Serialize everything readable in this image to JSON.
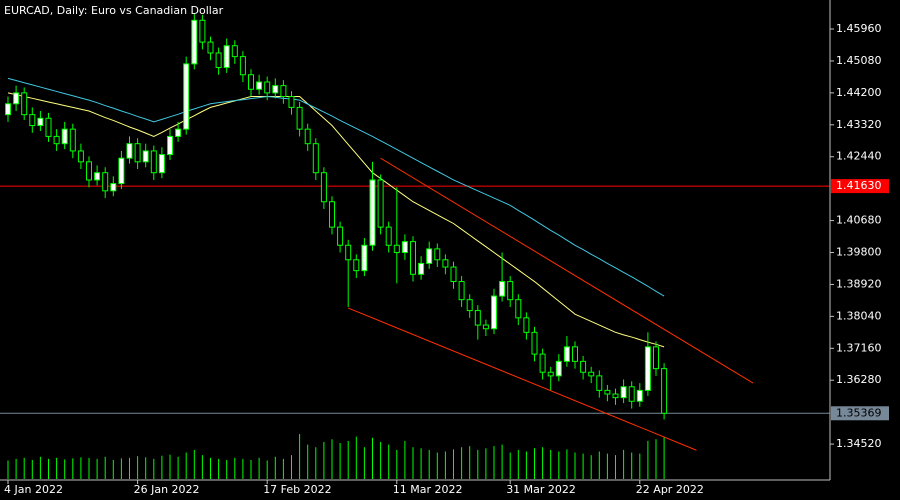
{
  "chart_data": {
    "type": "candlestick",
    "title": "EURCAD, Daily:  Euro vs Canadian Dollar",
    "background": "#000000",
    "axis_color": "#c0c0c0",
    "bull_color": "#ffffff",
    "bear_color": "#000000",
    "wick_color": "#00ff00",
    "volume_color": "#00ff00",
    "categories": [
      "4 Jan 2022",
      null,
      null,
      null,
      null,
      null,
      null,
      null,
      null,
      null,
      null,
      null,
      null,
      null,
      null,
      null,
      "26 Jan 2022",
      null,
      null,
      null,
      null,
      null,
      null,
      null,
      null,
      null,
      null,
      null,
      null,
      null,
      null,
      null,
      "17 Feb 2022",
      null,
      null,
      null,
      null,
      null,
      null,
      null,
      null,
      null,
      null,
      null,
      null,
      null,
      null,
      null,
      "11 Mar 2022",
      null,
      null,
      null,
      null,
      null,
      null,
      null,
      null,
      null,
      null,
      null,
      null,
      null,
      "31 Mar 2022",
      null,
      null,
      null,
      null,
      null,
      null,
      null,
      null,
      null,
      null,
      null,
      null,
      null,
      null,
      null,
      "22 Apr 2022",
      null,
      null,
      null
    ],
    "open": [
      1.436,
      1.439,
      1.442,
      1.436,
      1.433,
      1.435,
      1.43,
      1.428,
      1.432,
      1.426,
      1.423,
      1.418,
      1.42,
      1.415,
      1.417,
      1.424,
      1.428,
      1.423,
      1.426,
      1.42,
      1.425,
      1.43,
      1.432,
      1.45,
      1.462,
      1.456,
      1.453,
      1.449,
      1.455,
      1.452,
      1.447,
      1.443,
      1.445,
      1.442,
      1.444,
      1.441,
      1.438,
      1.432,
      1.428,
      1.42,
      1.412,
      1.405,
      1.4,
      1.396,
      1.393,
      1.4,
      1.418,
      1.405,
      1.4,
      1.398,
      1.401,
      1.392,
      1.395,
      1.399,
      1.396,
      1.394,
      1.39,
      1.385,
      1.382,
      1.378,
      1.377,
      1.386,
      1.39,
      1.385,
      1.38,
      1.376,
      1.37,
      1.365,
      1.364,
      1.368,
      1.372,
      1.368,
      1.365,
      1.364,
      1.36,
      1.359,
      1.358,
      1.361,
      1.357,
      1.36,
      1.372,
      1.366
    ],
    "high": [
      1.441,
      1.444,
      1.4435,
      1.438,
      1.437,
      1.4365,
      1.432,
      1.434,
      1.4335,
      1.428,
      1.4245,
      1.422,
      1.4215,
      1.419,
      1.426,
      1.43,
      1.4295,
      1.428,
      1.4275,
      1.427,
      1.432,
      1.434,
      1.452,
      1.464,
      1.4635,
      1.4575,
      1.4545,
      1.457,
      1.4565,
      1.4535,
      1.4485,
      1.447,
      1.4465,
      1.446,
      1.4455,
      1.4425,
      1.4395,
      1.4335,
      1.4295,
      1.4215,
      1.4135,
      1.4065,
      1.4015,
      1.3975,
      1.402,
      1.423,
      1.4195,
      1.4065,
      1.416,
      1.403,
      1.4025,
      1.397,
      1.401,
      1.4005,
      1.3975,
      1.3955,
      1.3915,
      1.3865,
      1.3835,
      1.3795,
      1.388,
      1.398,
      1.3915,
      1.3865,
      1.3815,
      1.3775,
      1.3715,
      1.3665,
      1.37,
      1.375,
      1.3735,
      1.3695,
      1.3665,
      1.3655,
      1.3615,
      1.3605,
      1.363,
      1.3625,
      1.362,
      1.376,
      1.3735,
      1.3675
    ],
    "low": [
      1.434,
      1.437,
      1.4345,
      1.431,
      1.4315,
      1.4285,
      1.426,
      1.4265,
      1.424,
      1.421,
      1.416,
      1.4165,
      1.413,
      1.4135,
      1.4155,
      1.4225,
      1.421,
      1.4215,
      1.418,
      1.4185,
      1.4235,
      1.4285,
      1.4305,
      1.4485,
      1.454,
      1.451,
      1.447,
      1.4475,
      1.45,
      1.445,
      1.441,
      1.4415,
      1.44,
      1.4405,
      1.439,
      1.436,
      1.43,
      1.426,
      1.418,
      1.41,
      1.403,
      1.398,
      1.383,
      1.391,
      1.3915,
      1.3985,
      1.403,
      1.398,
      1.3895,
      1.396,
      1.39,
      1.3905,
      1.3935,
      1.394,
      1.392,
      1.388,
      1.383,
      1.38,
      1.374,
      1.375,
      1.3755,
      1.3845,
      1.383,
      1.378,
      1.374,
      1.368,
      1.363,
      1.36,
      1.3625,
      1.3665,
      1.366,
      1.363,
      1.362,
      1.358,
      1.357,
      1.356,
      1.3565,
      1.355,
      1.3555,
      1.3585,
      1.364,
      1.352
    ],
    "close": [
      1.439,
      1.442,
      1.436,
      1.433,
      1.435,
      1.43,
      1.428,
      1.432,
      1.426,
      1.423,
      1.418,
      1.42,
      1.415,
      1.417,
      1.424,
      1.428,
      1.423,
      1.426,
      1.42,
      1.425,
      1.43,
      1.432,
      1.45,
      1.462,
      1.456,
      1.453,
      1.449,
      1.455,
      1.452,
      1.447,
      1.443,
      1.445,
      1.442,
      1.444,
      1.441,
      1.438,
      1.432,
      1.428,
      1.42,
      1.412,
      1.405,
      1.4,
      1.396,
      1.393,
      1.4,
      1.418,
      1.405,
      1.4,
      1.398,
      1.401,
      1.392,
      1.395,
      1.399,
      1.396,
      1.394,
      1.39,
      1.385,
      1.382,
      1.378,
      1.377,
      1.386,
      1.39,
      1.385,
      1.38,
      1.376,
      1.37,
      1.365,
      1.364,
      1.368,
      1.372,
      1.368,
      1.365,
      1.364,
      1.36,
      1.359,
      1.358,
      1.361,
      1.357,
      1.36,
      1.372,
      1.366,
      1.3537
    ],
    "volume": [
      35,
      38,
      40,
      36,
      42,
      38,
      40,
      37,
      39,
      41,
      40,
      38,
      42,
      36,
      39,
      40,
      43,
      41,
      38,
      44,
      46,
      42,
      50,
      55,
      45,
      40,
      38,
      36,
      40,
      38,
      36,
      40,
      35,
      42,
      38,
      45,
      85,
      65,
      60,
      70,
      75,
      68,
      72,
      80,
      60,
      78,
      70,
      65,
      55,
      72,
      60,
      58,
      55,
      50,
      52,
      56,
      60,
      62,
      55,
      58,
      62,
      65,
      50,
      55,
      52,
      58,
      60,
      55,
      52,
      56,
      50,
      48,
      45,
      52,
      48,
      45,
      55,
      50,
      48,
      72,
      75,
      80
    ],
    "ma": [
      {
        "color": "#ffff80",
        "values": [
          1.442,
          1.4415,
          1.441,
          1.4405,
          1.44,
          1.4395,
          1.439,
          1.4385,
          1.438,
          1.4375,
          1.437,
          1.4361,
          1.4352,
          1.4344,
          1.4335,
          1.4326,
          1.4318,
          1.4309,
          1.43,
          1.4311,
          1.4323,
          1.4334,
          1.4346,
          1.4357,
          1.4369,
          1.438,
          1.4386,
          1.4392,
          1.4398,
          1.4404,
          1.441,
          1.441,
          1.441,
          1.441,
          1.441,
          1.441,
          1.441,
          1.439,
          1.437,
          1.435,
          1.433,
          1.4304,
          1.4278,
          1.4252,
          1.4226,
          1.42,
          1.4184,
          1.4168,
          1.4152,
          1.4136,
          1.412,
          1.4108,
          1.4096,
          1.4084,
          1.4072,
          1.406,
          1.4044,
          1.4028,
          1.4012,
          1.3996,
          1.398,
          1.3964,
          1.3948,
          1.3932,
          1.3916,
          1.39,
          1.3882,
          1.3864,
          1.3846,
          1.3828,
          1.381,
          1.38,
          1.379,
          1.378,
          1.377,
          1.376,
          1.3753,
          1.3747,
          1.374,
          1.3733,
          1.3727,
          1.372
        ]
      },
      {
        "color": "#40c8e0",
        "values": [
          1.446,
          1.4454,
          1.4448,
          1.4442,
          1.4436,
          1.443,
          1.4424,
          1.4418,
          1.4412,
          1.4406,
          1.44,
          1.4393,
          1.4385,
          1.4378,
          1.437,
          1.4363,
          1.4355,
          1.4348,
          1.434,
          1.4347,
          1.4354,
          1.4361,
          1.4369,
          1.4376,
          1.4383,
          1.439,
          1.4393,
          1.4396,
          1.4399,
          1.4401,
          1.4404,
          1.4407,
          1.441,
          1.4408,
          1.4405,
          1.4403,
          1.44,
          1.4389,
          1.4378,
          1.4367,
          1.4356,
          1.4344,
          1.4333,
          1.4322,
          1.4311,
          1.43,
          1.4288,
          1.4276,
          1.4264,
          1.4252,
          1.424,
          1.4228,
          1.4216,
          1.4204,
          1.4192,
          1.418,
          1.417,
          1.416,
          1.415,
          1.414,
          1.413,
          1.412,
          1.411,
          1.4096,
          1.4083,
          1.4069,
          1.4055,
          1.4041,
          1.4028,
          1.4014,
          1.4,
          1.3988,
          1.3975,
          1.3963,
          1.395,
          1.3938,
          1.3925,
          1.3913,
          1.39,
          1.3887,
          1.3873,
          1.386
        ]
      }
    ],
    "trendlines": [
      {
        "color": "#ff3000",
        "x": [
          46,
          92
        ],
        "y": [
          1.424,
          1.362
        ]
      },
      {
        "color": "#ff3000",
        "x": [
          42,
          85
        ],
        "y": [
          1.3827,
          1.3435
        ]
      }
    ],
    "levels": [
      {
        "value": 1.4163,
        "label": "1.41630",
        "color": "#ff0000",
        "label_color": "#ffffff"
      },
      {
        "value": 1.35369,
        "label": "1.35369",
        "color": "#778899",
        "label_color": "#000000"
      }
    ],
    "ylim": [
      1.3353,
      1.4676
    ],
    "yticks": [
      {
        "value": 1.4596,
        "label": "1.45960"
      },
      {
        "value": 1.4508,
        "label": "1.45080"
      },
      {
        "value": 1.442,
        "label": "1.44200"
      },
      {
        "value": 1.4332,
        "label": "1.43320"
      },
      {
        "value": 1.4244,
        "label": "1.42440"
      },
      {
        "value": 1.4068,
        "label": "1.40680"
      },
      {
        "value": 1.398,
        "label": "1.39800"
      },
      {
        "value": 1.3892,
        "label": "1.38920"
      },
      {
        "value": 1.3804,
        "label": "1.38040"
      },
      {
        "value": 1.3716,
        "label": "1.37160"
      },
      {
        "value": 1.3628,
        "label": "1.36280"
      },
      {
        "value": 1.3452,
        "label": "1.34520"
      }
    ]
  }
}
